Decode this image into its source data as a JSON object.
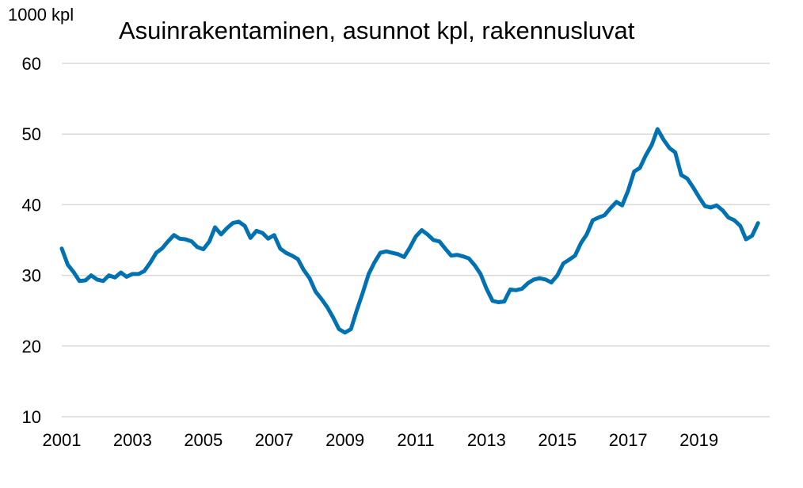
{
  "chart_data": {
    "type": "line",
    "title": "Asuinrakentaminen, asunnot kpl, rakennusluvat",
    "ylabel": "1000 kpl",
    "xlabel": "",
    "xlim": [
      2001,
      2021
    ],
    "ylim": [
      10,
      60
    ],
    "x_ticks": [
      "2001",
      "2003",
      "2005",
      "2007",
      "2009",
      "2011",
      "2013",
      "2015",
      "2017",
      "2019"
    ],
    "y_ticks": [
      "10",
      "20",
      "30",
      "40",
      "50",
      "60"
    ],
    "grid": true,
    "line_color": "#0072B2",
    "series": [
      {
        "values": [
          [
            2001.0,
            33.8
          ],
          [
            2001.17,
            31.5
          ],
          [
            2001.33,
            30.5
          ],
          [
            2001.5,
            29.2
          ],
          [
            2001.67,
            29.3
          ],
          [
            2001.83,
            30.0
          ],
          [
            2002.0,
            29.4
          ],
          [
            2002.17,
            29.2
          ],
          [
            2002.33,
            30.0
          ],
          [
            2002.5,
            29.7
          ],
          [
            2002.67,
            30.4
          ],
          [
            2002.83,
            29.8
          ],
          [
            2003.0,
            30.2
          ],
          [
            2003.17,
            30.2
          ],
          [
            2003.33,
            30.6
          ],
          [
            2003.5,
            31.8
          ],
          [
            2003.67,
            33.2
          ],
          [
            2003.83,
            33.8
          ],
          [
            2004.0,
            34.8
          ],
          [
            2004.17,
            35.7
          ],
          [
            2004.33,
            35.2
          ],
          [
            2004.5,
            35.1
          ],
          [
            2004.67,
            34.8
          ],
          [
            2004.83,
            34.0
          ],
          [
            2005.0,
            33.7
          ],
          [
            2005.17,
            34.8
          ],
          [
            2005.33,
            36.8
          ],
          [
            2005.5,
            35.8
          ],
          [
            2005.67,
            36.7
          ],
          [
            2005.83,
            37.4
          ],
          [
            2006.0,
            37.6
          ],
          [
            2006.17,
            37.0
          ],
          [
            2006.33,
            35.3
          ],
          [
            2006.5,
            36.3
          ],
          [
            2006.67,
            36.0
          ],
          [
            2006.83,
            35.2
          ],
          [
            2007.0,
            35.7
          ],
          [
            2007.17,
            33.8
          ],
          [
            2007.33,
            33.2
          ],
          [
            2007.5,
            32.8
          ],
          [
            2007.67,
            32.3
          ],
          [
            2007.83,
            30.8
          ],
          [
            2008.0,
            29.6
          ],
          [
            2008.17,
            27.7
          ],
          [
            2008.33,
            26.7
          ],
          [
            2008.5,
            25.5
          ],
          [
            2008.67,
            24.0
          ],
          [
            2008.83,
            22.4
          ],
          [
            2009.0,
            21.9
          ],
          [
            2009.17,
            22.4
          ],
          [
            2009.33,
            25.0
          ],
          [
            2009.5,
            27.5
          ],
          [
            2009.67,
            30.2
          ],
          [
            2009.83,
            31.8
          ],
          [
            2010.0,
            33.2
          ],
          [
            2010.17,
            33.4
          ],
          [
            2010.33,
            33.2
          ],
          [
            2010.5,
            33.0
          ],
          [
            2010.67,
            32.6
          ],
          [
            2010.83,
            33.9
          ],
          [
            2011.0,
            35.5
          ],
          [
            2011.17,
            36.4
          ],
          [
            2011.33,
            35.8
          ],
          [
            2011.5,
            35.0
          ],
          [
            2011.67,
            34.8
          ],
          [
            2011.83,
            33.8
          ],
          [
            2012.0,
            32.8
          ],
          [
            2012.17,
            32.9
          ],
          [
            2012.33,
            32.7
          ],
          [
            2012.5,
            32.4
          ],
          [
            2012.67,
            31.4
          ],
          [
            2012.83,
            30.2
          ],
          [
            2013.0,
            28.1
          ],
          [
            2013.17,
            26.4
          ],
          [
            2013.33,
            26.2
          ],
          [
            2013.5,
            26.3
          ],
          [
            2013.67,
            28.0
          ],
          [
            2013.83,
            27.9
          ],
          [
            2014.0,
            28.1
          ],
          [
            2014.17,
            28.9
          ],
          [
            2014.33,
            29.4
          ],
          [
            2014.5,
            29.6
          ],
          [
            2014.67,
            29.4
          ],
          [
            2014.83,
            29.0
          ],
          [
            2015.0,
            30.0
          ],
          [
            2015.17,
            31.7
          ],
          [
            2015.33,
            32.2
          ],
          [
            2015.5,
            32.8
          ],
          [
            2015.67,
            34.6
          ],
          [
            2015.83,
            35.8
          ],
          [
            2016.0,
            37.8
          ],
          [
            2016.17,
            38.2
          ],
          [
            2016.33,
            38.5
          ],
          [
            2016.5,
            39.5
          ],
          [
            2016.67,
            40.4
          ],
          [
            2016.83,
            39.9
          ],
          [
            2017.0,
            42.0
          ],
          [
            2017.17,
            44.7
          ],
          [
            2017.33,
            45.2
          ],
          [
            2017.5,
            47.0
          ],
          [
            2017.67,
            48.5
          ],
          [
            2017.83,
            50.7
          ],
          [
            2018.0,
            49.2
          ],
          [
            2018.17,
            48.0
          ],
          [
            2018.33,
            47.4
          ],
          [
            2018.5,
            44.2
          ],
          [
            2018.67,
            43.7
          ],
          [
            2018.83,
            42.5
          ],
          [
            2019.0,
            41.1
          ],
          [
            2019.17,
            39.8
          ],
          [
            2019.33,
            39.6
          ],
          [
            2019.5,
            39.9
          ],
          [
            2019.67,
            39.2
          ],
          [
            2019.83,
            38.2
          ],
          [
            2020.0,
            37.8
          ],
          [
            2020.17,
            37.0
          ],
          [
            2020.33,
            35.1
          ],
          [
            2020.5,
            35.6
          ],
          [
            2020.67,
            37.4
          ]
        ]
      }
    ]
  }
}
